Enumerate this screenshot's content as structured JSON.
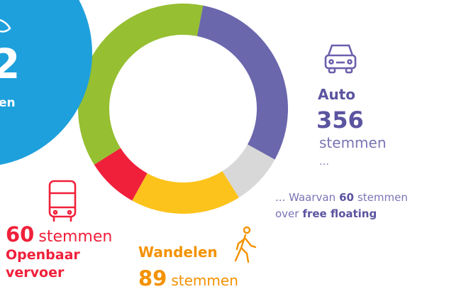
{
  "chart_data": {
    "type": "donut",
    "start_angle": 11,
    "values": [
      30,
      8,
      17,
      8,
      37
    ],
    "colors": [
      "#6b67ad",
      "#d8d8d8",
      "#fcc31c",
      "#f0203a",
      "#96bf31"
    ]
  },
  "fiets": {
    "number": "2",
    "unit": "en"
  },
  "auto": {
    "name": "Auto",
    "votes": 356,
    "unit": "stemmen",
    "ellipsis": "…",
    "note_prefix": "... Waarvan",
    "note_votes": 60,
    "note_unit": "stemmen",
    "note_over": "over",
    "note_topic": "free floating"
  },
  "ov": {
    "votes": 60,
    "unit": "stemmen",
    "name_line1": "Openbaar",
    "name_line2": "vervoer"
  },
  "wandelen": {
    "name": "Wandelen",
    "votes": 89,
    "unit": "stemmen"
  }
}
